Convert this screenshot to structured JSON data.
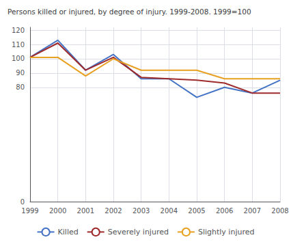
{
  "chart_data": {
    "type": "line",
    "title": "Persons killed or injured, by degree of injury. 1999-2008. 1999=100",
    "categories": [
      "1999",
      "2000",
      "2001",
      "2002",
      "2003",
      "2004",
      "2005",
      "2006",
      "2007",
      "2008"
    ],
    "series": [
      {
        "name": "Killed",
        "color": "#4472c4",
        "values": [
          101,
          113,
          92,
          103,
          86,
          86,
          73,
          80,
          76,
          85
        ]
      },
      {
        "name": "Severely injured",
        "color": "#9e2a2b",
        "values": [
          101,
          111,
          92,
          101,
          87,
          86,
          85,
          83,
          76,
          76
        ]
      },
      {
        "name": "Slightly injured",
        "color": "#e8a020",
        "values": [
          101,
          101,
          88,
          100,
          92,
          92,
          92,
          86,
          86,
          86
        ]
      }
    ],
    "ylim": [
      0,
      122
    ],
    "yticks": [
      0,
      80,
      90,
      100,
      110,
      120
    ],
    "grid": true,
    "legend": "bottom"
  }
}
